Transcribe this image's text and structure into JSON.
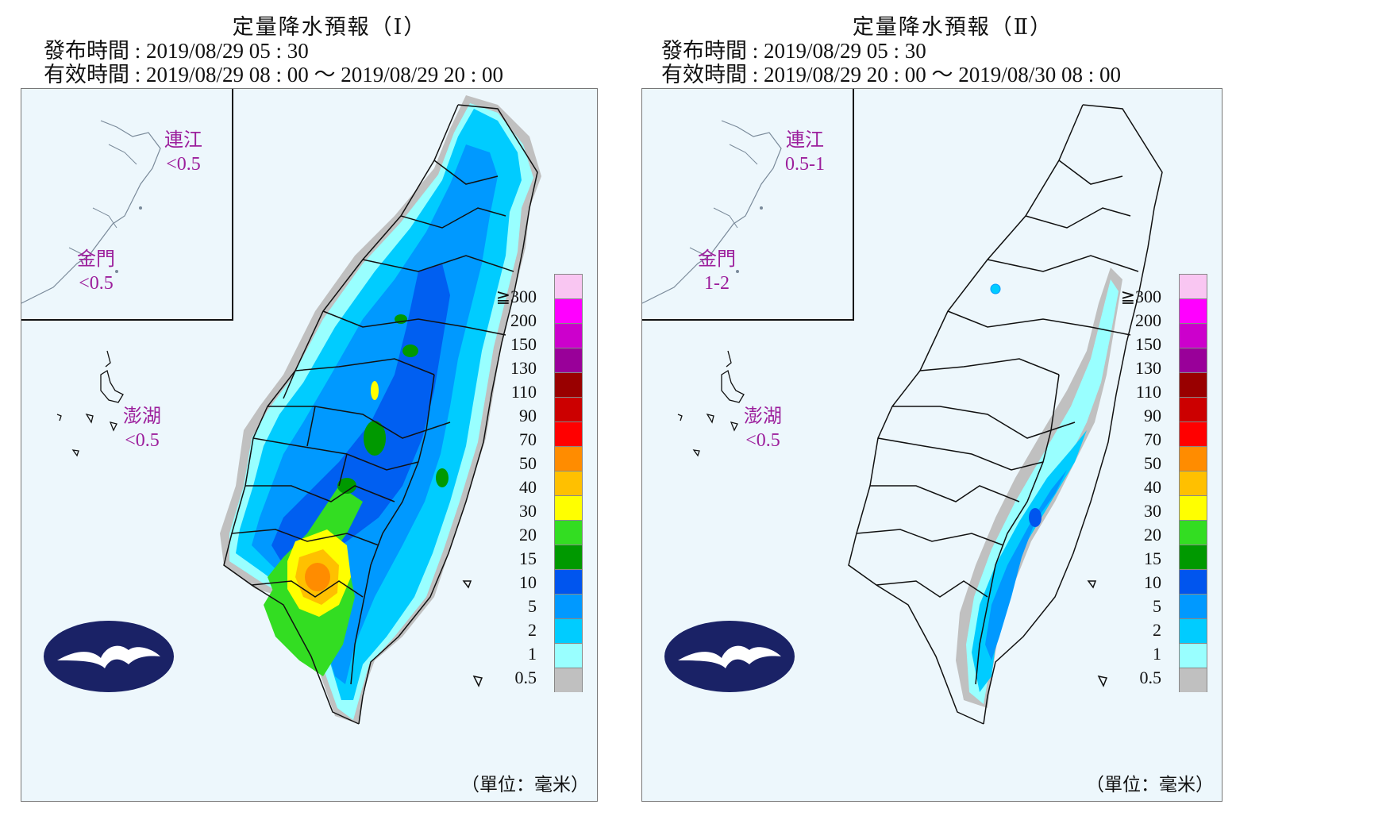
{
  "panels": [
    {
      "title": "定量降水預報（Ⅰ）",
      "issue": "發布時間 : 2019/08/29 05 : 30",
      "valid": "有效時間 : 2019/08/29 08 : 00 ～ 2019/08/29 20 : 00",
      "lianjiang": {
        "name": "連江",
        "value": "<0.5"
      },
      "kinmen": {
        "name": "金門",
        "value": "<0.5"
      },
      "penghu": {
        "name": "澎湖",
        "value": "<0.5"
      },
      "unit": "（單位：毫米）"
    },
    {
      "title": "定量降水預報（Ⅱ）",
      "issue": "發布時間 : 2019/08/29 05 : 30",
      "valid": "有效時間 : 2019/08/29 20 : 00 ～ 2019/08/30 08 : 00",
      "lianjiang": {
        "name": "連江",
        "value": "0.5-1"
      },
      "kinmen": {
        "name": "金門",
        "value": "1-2"
      },
      "penghu": {
        "name": "澎湖",
        "value": "<0.5"
      },
      "unit": "（單位：毫米）"
    }
  ],
  "legend": {
    "labels": [
      "≧300",
      "200",
      "150",
      "130",
      "110",
      "90",
      "70",
      "50",
      "40",
      "30",
      "20",
      "15",
      "10",
      "5",
      "2",
      "1",
      "0.5"
    ],
    "colors": [
      "#f9c6f2",
      "#ff00ff",
      "#cc00cc",
      "#990099",
      "#990000",
      "#cc0000",
      "#ff0000",
      "#ff8c00",
      "#ffc000",
      "#ffff00",
      "#33dd22",
      "#009900",
      "#0055ee",
      "#0099ff",
      "#00ccff",
      "#99ffff",
      "#c0c0c0"
    ]
  },
  "colors": {
    "ocean": "#edf7fc",
    "label": "#9c1f9c",
    "logo": "#1a2266"
  }
}
